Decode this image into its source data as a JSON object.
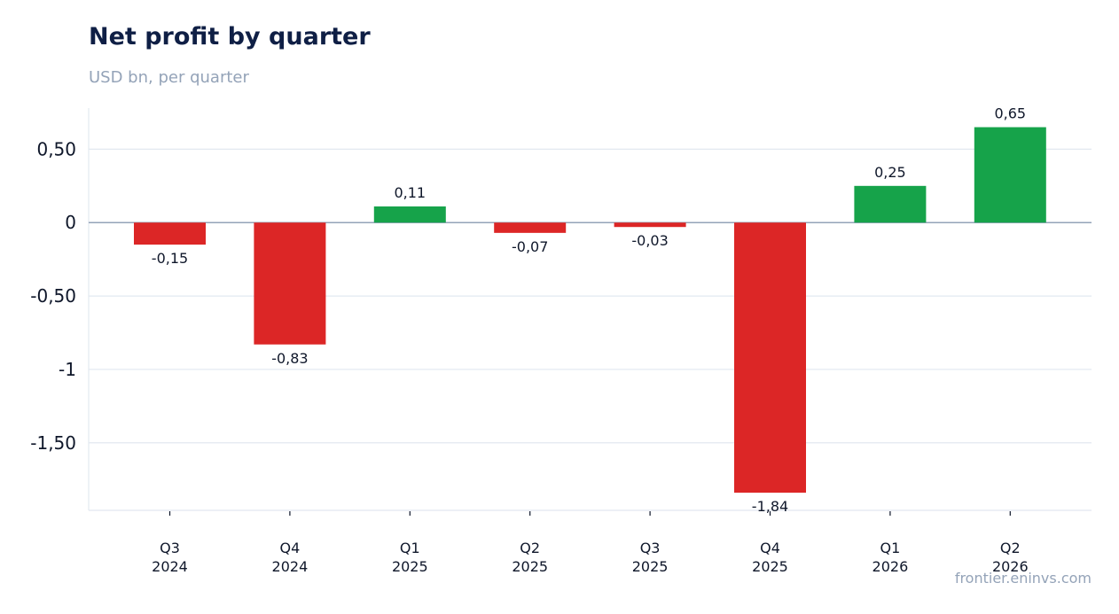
{
  "chart_data": {
    "type": "bar",
    "title": "Net profit by quarter",
    "subtitle": "USD bn, per quarter",
    "categories": [
      [
        "Q3",
        "2024"
      ],
      [
        "Q4",
        "2024"
      ],
      [
        "Q1",
        "2025"
      ],
      [
        "Q2",
        "2025"
      ],
      [
        "Q3",
        "2025"
      ],
      [
        "Q4",
        "2025"
      ],
      [
        "Q1",
        "2026"
      ],
      [
        "Q2",
        "2026"
      ]
    ],
    "values": [
      -0.15,
      -0.83,
      0.11,
      -0.07,
      -0.03,
      -1.84,
      0.25,
      0.65
    ],
    "value_labels": [
      "-0,15",
      "-0,83",
      "0,11",
      "-0,07",
      "-0,03",
      "-1,84",
      "0,25",
      "0,65"
    ],
    "y_ticks": [
      {
        "value": 0.5,
        "label": "0,50"
      },
      {
        "value": 0,
        "label": "0"
      },
      {
        "value": -0.5,
        "label": "-0,50"
      },
      {
        "value": -1,
        "label": "-1"
      },
      {
        "value": -1.5,
        "label": "-1,50"
      }
    ],
    "ylim": [
      -1.96,
      0.78
    ],
    "grid": true,
    "colors": {
      "positive": "#16a34a",
      "negative": "#dc2626",
      "grid": "#e2e8f0",
      "zero_line": "#94a3b8",
      "axis": "#e2e8f0",
      "text": "#0f172a"
    }
  },
  "source": "frontier.eninvs.com"
}
